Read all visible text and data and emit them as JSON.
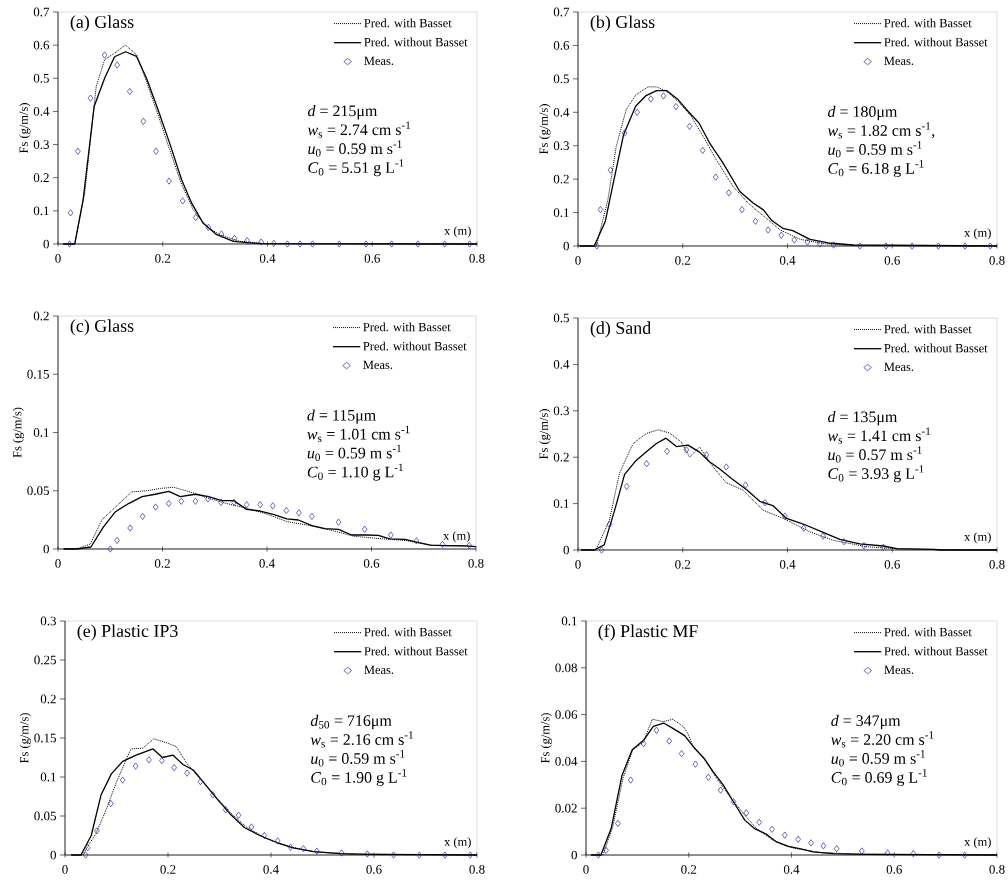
{
  "chart_data": [
    {
      "type": "line",
      "title": "(a) Glass",
      "xlabel": "x (m)",
      "ylabel": "Fs (g/m/s)",
      "xlim": [
        0,
        0.8
      ],
      "xticks": [
        0,
        0.2,
        0.4,
        0.6,
        0.8
      ],
      "ylim": [
        0,
        0.7
      ],
      "yticks": [
        0,
        0.1,
        0.2,
        0.3,
        0.4,
        0.5,
        0.6,
        0.7
      ],
      "legend": "top right",
      "annotations": [
        "*d* = 215μm",
        "*w*$_{s}$ = 2.74 cm s$^{-1}$",
        "*u*$_{0}$ = 0.59 m s$^{-1}$",
        "*C*$_{0}$ = 5.51 g L$^{-1}$"
      ],
      "series": [
        {
          "name": "Pred. with Basset",
          "type": "line",
          "line_style": "dotted",
          "marker": "none",
          "color": "#000000",
          "x": [
            0.01,
            0.032,
            0.051,
            0.073,
            0.089,
            0.108,
            0.129,
            0.15,
            0.169,
            0.191,
            0.213,
            0.236,
            0.258,
            0.283,
            0.309,
            0.347,
            0.398,
            0.8
          ],
          "values": [
            0,
            0,
            0.154,
            0.476,
            0.556,
            0.576,
            0.6,
            0.571,
            0.49,
            0.39,
            0.285,
            0.18,
            0.104,
            0.053,
            0.028,
            0.008,
            0.001,
            0
          ]
        },
        {
          "name": "Pred. without Basset",
          "type": "line",
          "line_style": "solid",
          "marker": "none",
          "color": "#000000",
          "x": [
            0.01,
            0.032,
            0.048,
            0.069,
            0.089,
            0.108,
            0.129,
            0.15,
            0.169,
            0.191,
            0.213,
            0.236,
            0.255,
            0.277,
            0.303,
            0.335,
            0.386,
            0.8
          ],
          "values": [
            0,
            0,
            0.134,
            0.415,
            0.5,
            0.565,
            0.58,
            0.566,
            0.5,
            0.405,
            0.305,
            0.194,
            0.124,
            0.063,
            0.028,
            0.008,
            0.001,
            0
          ]
        },
        {
          "name": "Meas.",
          "type": "scatter",
          "marker": "diamond",
          "color": "#2a2aa0",
          "x": [
            0.022,
            0.024,
            0.038,
            0.062,
            0.089,
            0.113,
            0.137,
            0.163,
            0.187,
            0.212,
            0.238,
            0.263,
            0.287,
            0.312,
            0.337,
            0.361,
            0.388,
            0.412,
            0.438,
            0.462,
            0.486,
            0.537,
            0.588,
            0.637,
            0.687,
            0.738,
            0.786
          ],
          "values": [
            0,
            0.094,
            0.28,
            0.44,
            0.57,
            0.54,
            0.46,
            0.37,
            0.28,
            0.19,
            0.13,
            0.08,
            0.05,
            0.03,
            0.017,
            0.01,
            0.006,
            0.002,
            0,
            0,
            0,
            0,
            0,
            0,
            0,
            0,
            0
          ]
        }
      ]
    },
    {
      "type": "line",
      "title": "(b) Glass",
      "xlabel": "x (m)",
      "ylabel": "Fs (g/m/s)",
      "xlim": [
        0,
        0.8
      ],
      "xticks": [
        0,
        0.2,
        0.4,
        0.6,
        0.8
      ],
      "ylim": [
        0,
        0.7
      ],
      "yticks": [
        0,
        0.1,
        0.2,
        0.3,
        0.4,
        0.5,
        0.6,
        0.7
      ],
      "legend": "top right",
      "annotations": [
        "*d* = 180μm",
        "*w*$_{s}$ = 1.82 cm s$^{-1}$,",
        "*u*$_{0}$ = 0.59 m s$^{-1}$",
        "*C*$_{0}$ = 6.18 g L$^{-1}$"
      ],
      "series": [
        {
          "name": "Pred. with Basset",
          "type": "line",
          "line_style": "dotted",
          "marker": "none",
          "color": "#000000",
          "x": [
            0.003,
            0.035,
            0.057,
            0.073,
            0.092,
            0.111,
            0.134,
            0.15,
            0.169,
            0.194,
            0.216,
            0.239,
            0.264,
            0.296,
            0.325,
            0.354,
            0.386,
            0.424,
            0.469,
            0.526,
            0.8
          ],
          "values": [
            0,
            0,
            0.138,
            0.298,
            0.408,
            0.453,
            0.476,
            0.476,
            0.463,
            0.428,
            0.388,
            0.328,
            0.258,
            0.178,
            0.128,
            0.09,
            0.048,
            0.02,
            0.007,
            0.001,
            0
          ]
        },
        {
          "name": "Pred. without Basset",
          "type": "line",
          "line_style": "solid",
          "marker": "none",
          "color": "#000000",
          "x": [
            0.003,
            0.031,
            0.052,
            0.066,
            0.087,
            0.11,
            0.13,
            0.15,
            0.169,
            0.191,
            0.21,
            0.231,
            0.252,
            0.277,
            0.309,
            0.335,
            0.354,
            0.37,
            0.391,
            0.41,
            0.443,
            0.478,
            0.526,
            0.8
          ],
          "values": [
            0,
            0,
            0.073,
            0.178,
            0.333,
            0.418,
            0.45,
            0.465,
            0.465,
            0.438,
            0.403,
            0.368,
            0.306,
            0.248,
            0.163,
            0.128,
            0.108,
            0.076,
            0.053,
            0.046,
            0.02,
            0.009,
            0.003,
            0
          ]
        },
        {
          "name": "Meas.",
          "type": "scatter",
          "marker": "diamond",
          "color": "#2a2aa0",
          "x": [
            0.036,
            0.043,
            0.062,
            0.089,
            0.113,
            0.139,
            0.163,
            0.187,
            0.213,
            0.238,
            0.263,
            0.288,
            0.313,
            0.339,
            0.363,
            0.388,
            0.413,
            0.438,
            0.462,
            0.488,
            0.538,
            0.588,
            0.638,
            0.688,
            0.739,
            0.787
          ],
          "values": [
            0,
            0.109,
            0.227,
            0.338,
            0.4,
            0.44,
            0.449,
            0.417,
            0.358,
            0.286,
            0.206,
            0.159,
            0.109,
            0.074,
            0.048,
            0.032,
            0.018,
            0.012,
            0.006,
            0.003,
            0,
            0,
            0,
            0,
            0,
            0
          ]
        }
      ]
    },
    {
      "type": "line",
      "title": "(c) Glass",
      "xlabel": "x (m)",
      "ylabel": "Fs (g/m/s)",
      "xlim": [
        0,
        0.8
      ],
      "xticks": [
        0,
        0.2,
        0.4,
        0.6,
        0.8
      ],
      "ylim": [
        0,
        0.2
      ],
      "yticks": [
        0,
        0.05,
        0.1,
        0.15,
        0.2
      ],
      "legend": "top right",
      "annotations": [
        "*d* = 115μm",
        "*w*$_{s}$ = 1.01 cm s$^{-1}$",
        "*u*$_{0}$ = 0.59 m s$^{-1}$",
        "*C*$_{0}$ = 1.10 g L$^{-1}$"
      ],
      "series": [
        {
          "name": "Pred. with Basset",
          "type": "line",
          "line_style": "dotted",
          "marker": "none",
          "color": "#000000",
          "x": [
            0.011,
            0.04,
            0.062,
            0.084,
            0.11,
            0.141,
            0.17,
            0.196,
            0.221,
            0.253,
            0.285,
            0.323,
            0.361,
            0.4,
            0.438,
            0.476,
            0.527,
            0.565,
            0.616,
            0.667,
            0.718,
            0.769,
            0.8
          ],
          "values": [
            0,
            0.0006,
            0.0043,
            0.025,
            0.036,
            0.049,
            0.05,
            0.052,
            0.053,
            0.049,
            0.044,
            0.039,
            0.035,
            0.03,
            0.0235,
            0.0206,
            0.0157,
            0.011,
            0.0089,
            0.0072,
            0.0031,
            0.0026,
            0.002
          ]
        },
        {
          "name": "Pred. without Basset",
          "type": "line",
          "line_style": "solid",
          "marker": "none",
          "color": "#000000",
          "x": [
            0.011,
            0.036,
            0.063,
            0.087,
            0.11,
            0.135,
            0.161,
            0.186,
            0.212,
            0.234,
            0.263,
            0.288,
            0.314,
            0.336,
            0.361,
            0.387,
            0.412,
            0.438,
            0.46,
            0.486,
            0.511,
            0.537,
            0.562,
            0.591,
            0.613,
            0.635,
            0.664,
            0.686,
            0.712,
            0.741,
            0.782,
            0.8
          ],
          "values": [
            0,
            0,
            0.0017,
            0.019,
            0.032,
            0.039,
            0.045,
            0.047,
            0.0495,
            0.045,
            0.047,
            0.045,
            0.0415,
            0.0415,
            0.034,
            0.0326,
            0.0298,
            0.0258,
            0.0249,
            0.02,
            0.0175,
            0.0169,
            0.012,
            0.012,
            0.0117,
            0.0086,
            0.0083,
            0.006,
            0.0034,
            0.0029,
            0.0026,
            0.002
          ]
        },
        {
          "name": "Meas.",
          "type": "scatter",
          "marker": "diamond",
          "color": "#2a2aa0",
          "x": [
            0.1,
            0.113,
            0.138,
            0.162,
            0.187,
            0.212,
            0.236,
            0.263,
            0.287,
            0.312,
            0.337,
            0.361,
            0.387,
            0.411,
            0.437,
            0.461,
            0.486,
            0.537,
            0.587,
            0.637,
            0.686,
            0.736,
            0.787
          ],
          "values": [
            0,
            0.0074,
            0.018,
            0.028,
            0.036,
            0.039,
            0.041,
            0.041,
            0.043,
            0.04,
            0.04,
            0.038,
            0.038,
            0.037,
            0.033,
            0.031,
            0.028,
            0.023,
            0.017,
            0.012,
            0.007,
            0.004,
            0.003
          ]
        }
      ]
    },
    {
      "type": "line",
      "title": "(d) Sand",
      "xlabel": "x (m)",
      "ylabel": "Fs (g/m/s)",
      "xlim": [
        0,
        0.8
      ],
      "xticks": [
        0,
        0.2,
        0.4,
        0.6,
        0.8
      ],
      "ylim": [
        0,
        0.5
      ],
      "yticks": [
        0,
        0.1,
        0.2,
        0.3,
        0.4,
        0.5
      ],
      "legend": "top right",
      "annotations": [
        "*d* = 135μm",
        "*w*$_{s}$ = 1.41 cm s$^{-1}$",
        "*u*$_{0}$ = 0.57 m s$^{-1}$",
        "*C*$_{0}$ = 3.93 g L$^{-1}$"
      ],
      "series": [
        {
          "name": "Pred. with Basset",
          "type": "line",
          "line_style": "dotted",
          "marker": "none",
          "color": "#000000",
          "x": [
            0.006,
            0.034,
            0.06,
            0.079,
            0.105,
            0.13,
            0.153,
            0.175,
            0.197,
            0.213,
            0.232,
            0.258,
            0.283,
            0.315,
            0.353,
            0.392,
            0.443,
            0.487,
            0.551,
            0.615,
            0.8
          ],
          "values": [
            0,
            0,
            0.064,
            0.165,
            0.229,
            0.251,
            0.259,
            0.252,
            0.233,
            0.2,
            0.222,
            0.179,
            0.145,
            0.129,
            0.086,
            0.068,
            0.039,
            0.021,
            0.007,
            0.002,
            0
          ]
        },
        {
          "name": "Pred. without Basset",
          "type": "line",
          "line_style": "solid",
          "marker": "none",
          "color": "#000000",
          "x": [
            0.006,
            0.031,
            0.05,
            0.07,
            0.089,
            0.111,
            0.13,
            0.149,
            0.168,
            0.188,
            0.21,
            0.232,
            0.251,
            0.27,
            0.293,
            0.322,
            0.347,
            0.373,
            0.398,
            0.43,
            0.468,
            0.5,
            0.538,
            0.583,
            0.609,
            0.679,
            0.69,
            0.8
          ],
          "values": [
            0,
            0,
            0.011,
            0.086,
            0.163,
            0.193,
            0.211,
            0.229,
            0.241,
            0.223,
            0.226,
            0.211,
            0.19,
            0.175,
            0.154,
            0.13,
            0.105,
            0.095,
            0.068,
            0.056,
            0.038,
            0.023,
            0.013,
            0.0086,
            0.0029,
            0.0014,
            0,
            0
          ]
        },
        {
          "name": "Meas.",
          "type": "scatter",
          "marker": "diamond",
          "color": "#2a2aa0",
          "x": [
            0.045,
            0.06,
            0.093,
            0.131,
            0.17,
            0.207,
            0.245,
            0.283,
            0.32,
            0.357,
            0.395,
            0.431,
            0.468,
            0.508,
            0.546,
            0.583
          ],
          "values": [
            0,
            0.055,
            0.137,
            0.186,
            0.213,
            0.216,
            0.205,
            0.179,
            0.14,
            0.102,
            0.073,
            0.047,
            0.03,
            0.018,
            0.009,
            0.006
          ]
        }
      ]
    },
    {
      "type": "line",
      "title": "(e) Plastic IP3",
      "xlabel": "x (m)",
      "ylabel": "Fs (g/m/s)",
      "xlim": [
        0,
        0.8
      ],
      "xticks": [
        0,
        0.2,
        0.4,
        0.6,
        0.8
      ],
      "ylim": [
        0,
        0.3
      ],
      "yticks": [
        0,
        0.05,
        0.1,
        0.15,
        0.2,
        0.25,
        0.3
      ],
      "legend": "top right",
      "annotations": [
        "*d*$_{50}$ = 716μm",
        "*w*$_{s}$ = 2.16 cm s$^{-1}$",
        "*u*$_{0}$ = 0.59 m s$^{-1}$",
        "*C*$_{0}$ = 1.90 g L$^{-1}$"
      ],
      "series": [
        {
          "name": "Pred. with Basset",
          "type": "line",
          "line_style": "dotted",
          "marker": "none",
          "color": "#000000",
          "x": [
            0.012,
            0.034,
            0.06,
            0.08,
            0.099,
            0.128,
            0.151,
            0.172,
            0.197,
            0.216,
            0.236,
            0.262,
            0.287,
            0.32,
            0.352,
            0.391,
            0.437,
            0.489,
            0.554,
            0.8
          ],
          "values": [
            0,
            0,
            0.0275,
            0.058,
            0.092,
            0.136,
            0.137,
            0.149,
            0.144,
            0.139,
            0.118,
            0.098,
            0.079,
            0.055,
            0.036,
            0.021,
            0.0103,
            0.0039,
            0.0013,
            0
          ]
        },
        {
          "name": "Pred. without Basset",
          "type": "line",
          "line_style": "solid",
          "marker": "none",
          "color": "#000000",
          "x": [
            0.012,
            0.031,
            0.051,
            0.07,
            0.09,
            0.112,
            0.138,
            0.171,
            0.189,
            0.21,
            0.229,
            0.249,
            0.268,
            0.294,
            0.32,
            0.349,
            0.378,
            0.411,
            0.443,
            0.482,
            0.534,
            0.586,
            0.8
          ],
          "values": [
            0,
            0,
            0.025,
            0.077,
            0.104,
            0.12,
            0.128,
            0.136,
            0.125,
            0.128,
            0.116,
            0.109,
            0.094,
            0.073,
            0.053,
            0.035,
            0.025,
            0.016,
            0.009,
            0.0043,
            0.0017,
            0.0009,
            0
          ]
        },
        {
          "name": "Meas.",
          "type": "scatter",
          "marker": "diamond",
          "color": "#2a2aa0",
          "x": [
            0.04,
            0.044,
            0.062,
            0.089,
            0.112,
            0.137,
            0.163,
            0.188,
            0.212,
            0.237,
            0.263,
            0.287,
            0.312,
            0.337,
            0.362,
            0.387,
            0.413,
            0.438,
            0.463,
            0.489,
            0.537,
            0.587,
            0.638,
            0.688,
            0.738,
            0.787
          ],
          "values": [
            0,
            0.0095,
            0.031,
            0.066,
            0.096,
            0.114,
            0.122,
            0.121,
            0.112,
            0.105,
            0.094,
            0.077,
            0.058,
            0.051,
            0.036,
            0.025,
            0.018,
            0.01,
            0.008,
            0.005,
            0.0026,
            0.0013,
            0,
            0,
            0,
            0
          ]
        }
      ]
    },
    {
      "type": "line",
      "title": "(f) Plastic MF",
      "xlabel": "x (m)",
      "ylabel": "Fs (g/m/s)",
      "xlim": [
        0,
        0.8
      ],
      "xticks": [
        0,
        0.2,
        0.4,
        0.6,
        0.8
      ],
      "ylim": [
        0,
        0.1
      ],
      "yticks": [
        0,
        0.02,
        0.04,
        0.06,
        0.08,
        0.1
      ],
      "legend": "top right",
      "annotations": [
        "*d* = 347μm",
        "*w*$_{s}$ = 2.20 cm s$^{-1}$",
        "*u*$_{0}$ = 0.59 m s$^{-1}$",
        "*C*$_{0}$ = 0.69 g L$^{-1}$"
      ],
      "series": [
        {
          "name": "Pred. with Basset",
          "type": "line",
          "line_style": "dotted",
          "marker": "none",
          "color": "#000000",
          "x": [
            0.01,
            0.033,
            0.052,
            0.072,
            0.091,
            0.111,
            0.129,
            0.15,
            0.169,
            0.189,
            0.198,
            0.208,
            0.231,
            0.254,
            0.28,
            0.306,
            0.332,
            0.364,
            0.403,
            0.455,
            0.52,
            0.8
          ],
          "values": [
            0,
            0,
            0.012,
            0.0328,
            0.045,
            0.048,
            0.058,
            0.057,
            0.058,
            0.055,
            0.052,
            0.0467,
            0.0407,
            0.0328,
            0.025,
            0.0178,
            0.0113,
            0.0063,
            0.003,
            0.0011,
            0.0004,
            0
          ]
        },
        {
          "name": "Pred. without Basset",
          "type": "line",
          "line_style": "solid",
          "marker": "none",
          "color": "#000000",
          "x": [
            0.01,
            0.029,
            0.049,
            0.07,
            0.09,
            0.112,
            0.131,
            0.151,
            0.17,
            0.192,
            0.211,
            0.231,
            0.247,
            0.267,
            0.289,
            0.309,
            0.328,
            0.351,
            0.371,
            0.393,
            0.416,
            0.442,
            0.481,
            0.546,
            0.8
          ],
          "values": [
            0,
            0,
            0.0113,
            0.034,
            0.045,
            0.049,
            0.055,
            0.0564,
            0.054,
            0.051,
            0.0457,
            0.041,
            0.0357,
            0.03,
            0.022,
            0.0149,
            0.0113,
            0.0089,
            0.0056,
            0.0037,
            0.0027,
            0.0013,
            0.0006,
            0.0003,
            0
          ]
        },
        {
          "name": "Meas.",
          "type": "scatter",
          "marker": "diamond",
          "color": "#2a2aa0",
          "x": [
            0.024,
            0.039,
            0.062,
            0.087,
            0.112,
            0.137,
            0.162,
            0.186,
            0.213,
            0.238,
            0.262,
            0.287,
            0.312,
            0.337,
            0.362,
            0.387,
            0.413,
            0.438,
            0.462,
            0.488,
            0.537,
            0.587,
            0.637,
            0.687,
            0.737
          ],
          "values": [
            0,
            0.002,
            0.0135,
            0.032,
            0.0476,
            0.0533,
            0.0487,
            0.0433,
            0.0388,
            0.0332,
            0.0277,
            0.0228,
            0.018,
            0.014,
            0.011,
            0.0085,
            0.0067,
            0.0052,
            0.0039,
            0.0027,
            0.0017,
            0.0009,
            0.0006,
            0,
            0
          ]
        }
      ]
    }
  ]
}
